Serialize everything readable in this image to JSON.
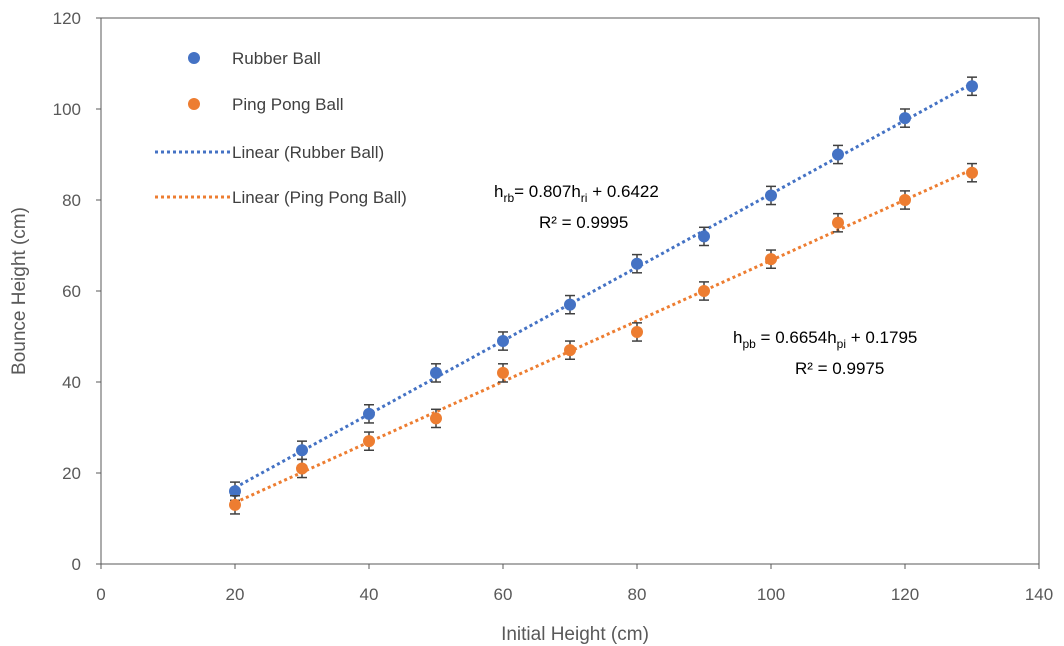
{
  "chart_data": {
    "type": "scatter",
    "xlabel": "Initial Height (cm)",
    "ylabel": "Bounce Height (cm)",
    "xlim": [
      0,
      140
    ],
    "ylim": [
      0,
      120
    ],
    "xticks": [
      0,
      20,
      40,
      60,
      80,
      100,
      120,
      140
    ],
    "yticks": [
      0,
      20,
      40,
      60,
      80,
      100,
      120
    ],
    "grid": false,
    "legend_position": "top-left",
    "series": [
      {
        "name": "Rubber Ball",
        "color": "#4472C4",
        "x": [
          20,
          30,
          40,
          50,
          60,
          70,
          80,
          90,
          100,
          110,
          120,
          130
        ],
        "y": [
          16,
          25,
          33,
          42,
          49,
          57,
          66,
          72,
          81,
          90,
          98,
          105
        ],
        "error": 2
      },
      {
        "name": "Ping Pong Ball",
        "color": "#ED7D31",
        "x": [
          20,
          30,
          40,
          50,
          60,
          70,
          80,
          90,
          100,
          110,
          120,
          130
        ],
        "y": [
          13,
          21,
          27,
          32,
          42,
          47,
          51,
          60,
          67,
          75,
          80,
          86
        ],
        "error": 2
      }
    ],
    "trendlines": [
      {
        "name": "Linear (Rubber Ball)",
        "color": "#4472C4",
        "slope": 0.807,
        "intercept": 0.6422,
        "x_range": [
          20,
          130
        ],
        "equation": {
          "main": "h",
          "sub1": "rb",
          "mid": "= 0.807h",
          "sub2": "ri",
          "tail": " + 0.6422"
        },
        "r2": "R² = 0.9995"
      },
      {
        "name": "Linear (Ping Pong Ball)",
        "color": "#ED7D31",
        "slope": 0.6654,
        "intercept": 0.1795,
        "x_range": [
          20,
          130
        ],
        "equation": {
          "main": "h",
          "sub1": "pb",
          "mid": " = 0.6654h",
          "sub2": "pi",
          "tail": " + 0.1795"
        },
        "r2": "R² = 0.9975"
      }
    ]
  }
}
